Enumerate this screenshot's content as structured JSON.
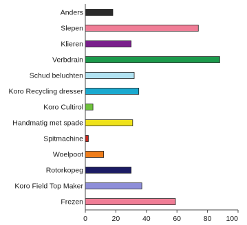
{
  "chart_data": {
    "type": "bar",
    "orientation": "horizontal",
    "title": "",
    "xlabel": "",
    "ylabel": "",
    "xlim": [
      0,
      100
    ],
    "grid": false,
    "legend": "none",
    "categories": [
      "Anders",
      "Slepen",
      "Klieren",
      "Verbdrain",
      "Schud beluchten",
      "Koro Recycling dresser",
      "Koro Cultirol",
      "Handmatig met spade",
      "Spitmachine",
      "Woelpoot",
      "Rotorkopeg",
      "Koro Field Top Maker",
      "Frezen"
    ],
    "values": [
      18,
      74,
      30,
      88,
      32,
      35,
      5,
      31,
      2,
      12,
      30,
      37,
      59
    ],
    "colors": [
      "#2b2b2b",
      "#f07d96",
      "#7a1f8c",
      "#1c9a4c",
      "#b2e3f2",
      "#1aa9cf",
      "#6fc23c",
      "#efe21a",
      "#c8281f",
      "#ef7d1a",
      "#1c1c64",
      "#8e8ed9",
      "#f07d96"
    ],
    "xticks": [
      "0",
      "20",
      "40",
      "60",
      "80",
      "100"
    ]
  }
}
